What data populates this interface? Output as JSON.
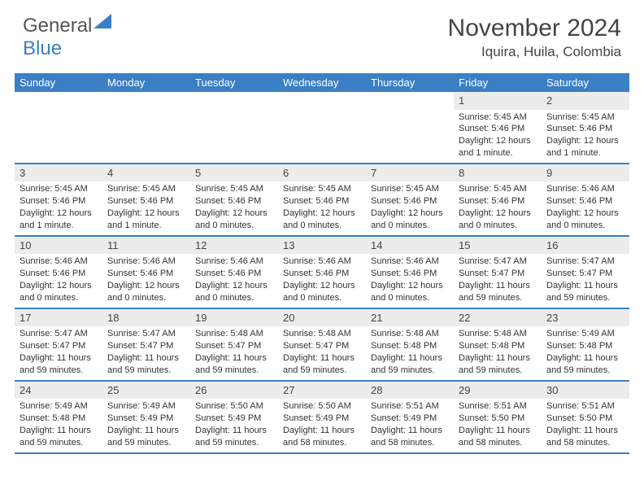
{
  "logo": {
    "text1": "General",
    "text2": "Blue"
  },
  "title": "November 2024",
  "location": "Iquira, Huila, Colombia",
  "colors": {
    "header_bg": "#3b7fc4",
    "header_text": "#ffffff",
    "daynum_bg": "#ececec",
    "border": "#3b7fc4",
    "body_text": "#333333"
  },
  "day_labels": [
    "Sunday",
    "Monday",
    "Tuesday",
    "Wednesday",
    "Thursday",
    "Friday",
    "Saturday"
  ],
  "weeks": [
    [
      {
        "empty": true
      },
      {
        "empty": true
      },
      {
        "empty": true
      },
      {
        "empty": true
      },
      {
        "empty": true
      },
      {
        "n": "1",
        "sunrise": "Sunrise: 5:45 AM",
        "sunset": "Sunset: 5:46 PM",
        "day1": "Daylight: 12 hours",
        "day2": "and 1 minute."
      },
      {
        "n": "2",
        "sunrise": "Sunrise: 5:45 AM",
        "sunset": "Sunset: 5:46 PM",
        "day1": "Daylight: 12 hours",
        "day2": "and 1 minute."
      }
    ],
    [
      {
        "n": "3",
        "sunrise": "Sunrise: 5:45 AM",
        "sunset": "Sunset: 5:46 PM",
        "day1": "Daylight: 12 hours",
        "day2": "and 1 minute."
      },
      {
        "n": "4",
        "sunrise": "Sunrise: 5:45 AM",
        "sunset": "Sunset: 5:46 PM",
        "day1": "Daylight: 12 hours",
        "day2": "and 1 minute."
      },
      {
        "n": "5",
        "sunrise": "Sunrise: 5:45 AM",
        "sunset": "Sunset: 5:46 PM",
        "day1": "Daylight: 12 hours",
        "day2": "and 0 minutes."
      },
      {
        "n": "6",
        "sunrise": "Sunrise: 5:45 AM",
        "sunset": "Sunset: 5:46 PM",
        "day1": "Daylight: 12 hours",
        "day2": "and 0 minutes."
      },
      {
        "n": "7",
        "sunrise": "Sunrise: 5:45 AM",
        "sunset": "Sunset: 5:46 PM",
        "day1": "Daylight: 12 hours",
        "day2": "and 0 minutes."
      },
      {
        "n": "8",
        "sunrise": "Sunrise: 5:45 AM",
        "sunset": "Sunset: 5:46 PM",
        "day1": "Daylight: 12 hours",
        "day2": "and 0 minutes."
      },
      {
        "n": "9",
        "sunrise": "Sunrise: 5:46 AM",
        "sunset": "Sunset: 5:46 PM",
        "day1": "Daylight: 12 hours",
        "day2": "and 0 minutes."
      }
    ],
    [
      {
        "n": "10",
        "sunrise": "Sunrise: 5:46 AM",
        "sunset": "Sunset: 5:46 PM",
        "day1": "Daylight: 12 hours",
        "day2": "and 0 minutes."
      },
      {
        "n": "11",
        "sunrise": "Sunrise: 5:46 AM",
        "sunset": "Sunset: 5:46 PM",
        "day1": "Daylight: 12 hours",
        "day2": "and 0 minutes."
      },
      {
        "n": "12",
        "sunrise": "Sunrise: 5:46 AM",
        "sunset": "Sunset: 5:46 PM",
        "day1": "Daylight: 12 hours",
        "day2": "and 0 minutes."
      },
      {
        "n": "13",
        "sunrise": "Sunrise: 5:46 AM",
        "sunset": "Sunset: 5:46 PM",
        "day1": "Daylight: 12 hours",
        "day2": "and 0 minutes."
      },
      {
        "n": "14",
        "sunrise": "Sunrise: 5:46 AM",
        "sunset": "Sunset: 5:46 PM",
        "day1": "Daylight: 12 hours",
        "day2": "and 0 minutes."
      },
      {
        "n": "15",
        "sunrise": "Sunrise: 5:47 AM",
        "sunset": "Sunset: 5:47 PM",
        "day1": "Daylight: 11 hours",
        "day2": "and 59 minutes."
      },
      {
        "n": "16",
        "sunrise": "Sunrise: 5:47 AM",
        "sunset": "Sunset: 5:47 PM",
        "day1": "Daylight: 11 hours",
        "day2": "and 59 minutes."
      }
    ],
    [
      {
        "n": "17",
        "sunrise": "Sunrise: 5:47 AM",
        "sunset": "Sunset: 5:47 PM",
        "day1": "Daylight: 11 hours",
        "day2": "and 59 minutes."
      },
      {
        "n": "18",
        "sunrise": "Sunrise: 5:47 AM",
        "sunset": "Sunset: 5:47 PM",
        "day1": "Daylight: 11 hours",
        "day2": "and 59 minutes."
      },
      {
        "n": "19",
        "sunrise": "Sunrise: 5:48 AM",
        "sunset": "Sunset: 5:47 PM",
        "day1": "Daylight: 11 hours",
        "day2": "and 59 minutes."
      },
      {
        "n": "20",
        "sunrise": "Sunrise: 5:48 AM",
        "sunset": "Sunset: 5:47 PM",
        "day1": "Daylight: 11 hours",
        "day2": "and 59 minutes."
      },
      {
        "n": "21",
        "sunrise": "Sunrise: 5:48 AM",
        "sunset": "Sunset: 5:48 PM",
        "day1": "Daylight: 11 hours",
        "day2": "and 59 minutes."
      },
      {
        "n": "22",
        "sunrise": "Sunrise: 5:48 AM",
        "sunset": "Sunset: 5:48 PM",
        "day1": "Daylight: 11 hours",
        "day2": "and 59 minutes."
      },
      {
        "n": "23",
        "sunrise": "Sunrise: 5:49 AM",
        "sunset": "Sunset: 5:48 PM",
        "day1": "Daylight: 11 hours",
        "day2": "and 59 minutes."
      }
    ],
    [
      {
        "n": "24",
        "sunrise": "Sunrise: 5:49 AM",
        "sunset": "Sunset: 5:48 PM",
        "day1": "Daylight: 11 hours",
        "day2": "and 59 minutes."
      },
      {
        "n": "25",
        "sunrise": "Sunrise: 5:49 AM",
        "sunset": "Sunset: 5:49 PM",
        "day1": "Daylight: 11 hours",
        "day2": "and 59 minutes."
      },
      {
        "n": "26",
        "sunrise": "Sunrise: 5:50 AM",
        "sunset": "Sunset: 5:49 PM",
        "day1": "Daylight: 11 hours",
        "day2": "and 59 minutes."
      },
      {
        "n": "27",
        "sunrise": "Sunrise: 5:50 AM",
        "sunset": "Sunset: 5:49 PM",
        "day1": "Daylight: 11 hours",
        "day2": "and 58 minutes."
      },
      {
        "n": "28",
        "sunrise": "Sunrise: 5:51 AM",
        "sunset": "Sunset: 5:49 PM",
        "day1": "Daylight: 11 hours",
        "day2": "and 58 minutes."
      },
      {
        "n": "29",
        "sunrise": "Sunrise: 5:51 AM",
        "sunset": "Sunset: 5:50 PM",
        "day1": "Daylight: 11 hours",
        "day2": "and 58 minutes."
      },
      {
        "n": "30",
        "sunrise": "Sunrise: 5:51 AM",
        "sunset": "Sunset: 5:50 PM",
        "day1": "Daylight: 11 hours",
        "day2": "and 58 minutes."
      }
    ]
  ]
}
